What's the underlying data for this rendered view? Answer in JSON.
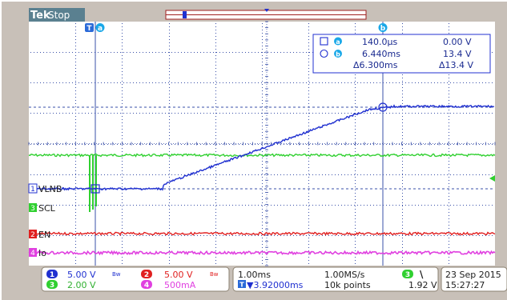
{
  "header": {
    "brand": "Tek",
    "status": "Stop"
  },
  "cursor_tags": {
    "trigger": "T",
    "a": "a",
    "b": "b"
  },
  "cursor_readout": {
    "a_time": "140.0µs",
    "a_value": "0.00 V",
    "b_time": "6.440ms",
    "b_value": "13.4 V",
    "delta_time": "Δ6.300ms",
    "delta_value": "Δ13.4 V"
  },
  "channels": [
    {
      "number": "1",
      "label": "VLNB",
      "color": "#2030d0",
      "scale": "5.00 V"
    },
    {
      "number": "3",
      "label": "SCL",
      "color": "#30d030",
      "scale": "2.00 V"
    },
    {
      "number": "2",
      "label": "EN",
      "color": "#e02020",
      "scale": "5.00 V"
    },
    {
      "number": "4",
      "label": "Io",
      "color": "#e040e0",
      "scale": "500mA"
    }
  ],
  "bw_mark": "Bw",
  "footer": {
    "timebase": "1.00ms",
    "trigger_pos": "▼3.92000ms",
    "sample_rate": "1.00MS/s",
    "record_length": "10k points",
    "trigger_source": "3",
    "trigger_slope": "\\",
    "trigger_level": "1.92 V",
    "date": "23 Sep 2015",
    "time": "15:27:27"
  },
  "colors": {
    "frame": "#c8c0b8",
    "grid": "#3a50a8",
    "ch1": "#2030d0",
    "ch2": "#e02020",
    "ch3": "#30d030",
    "ch4": "#e040e0"
  }
}
